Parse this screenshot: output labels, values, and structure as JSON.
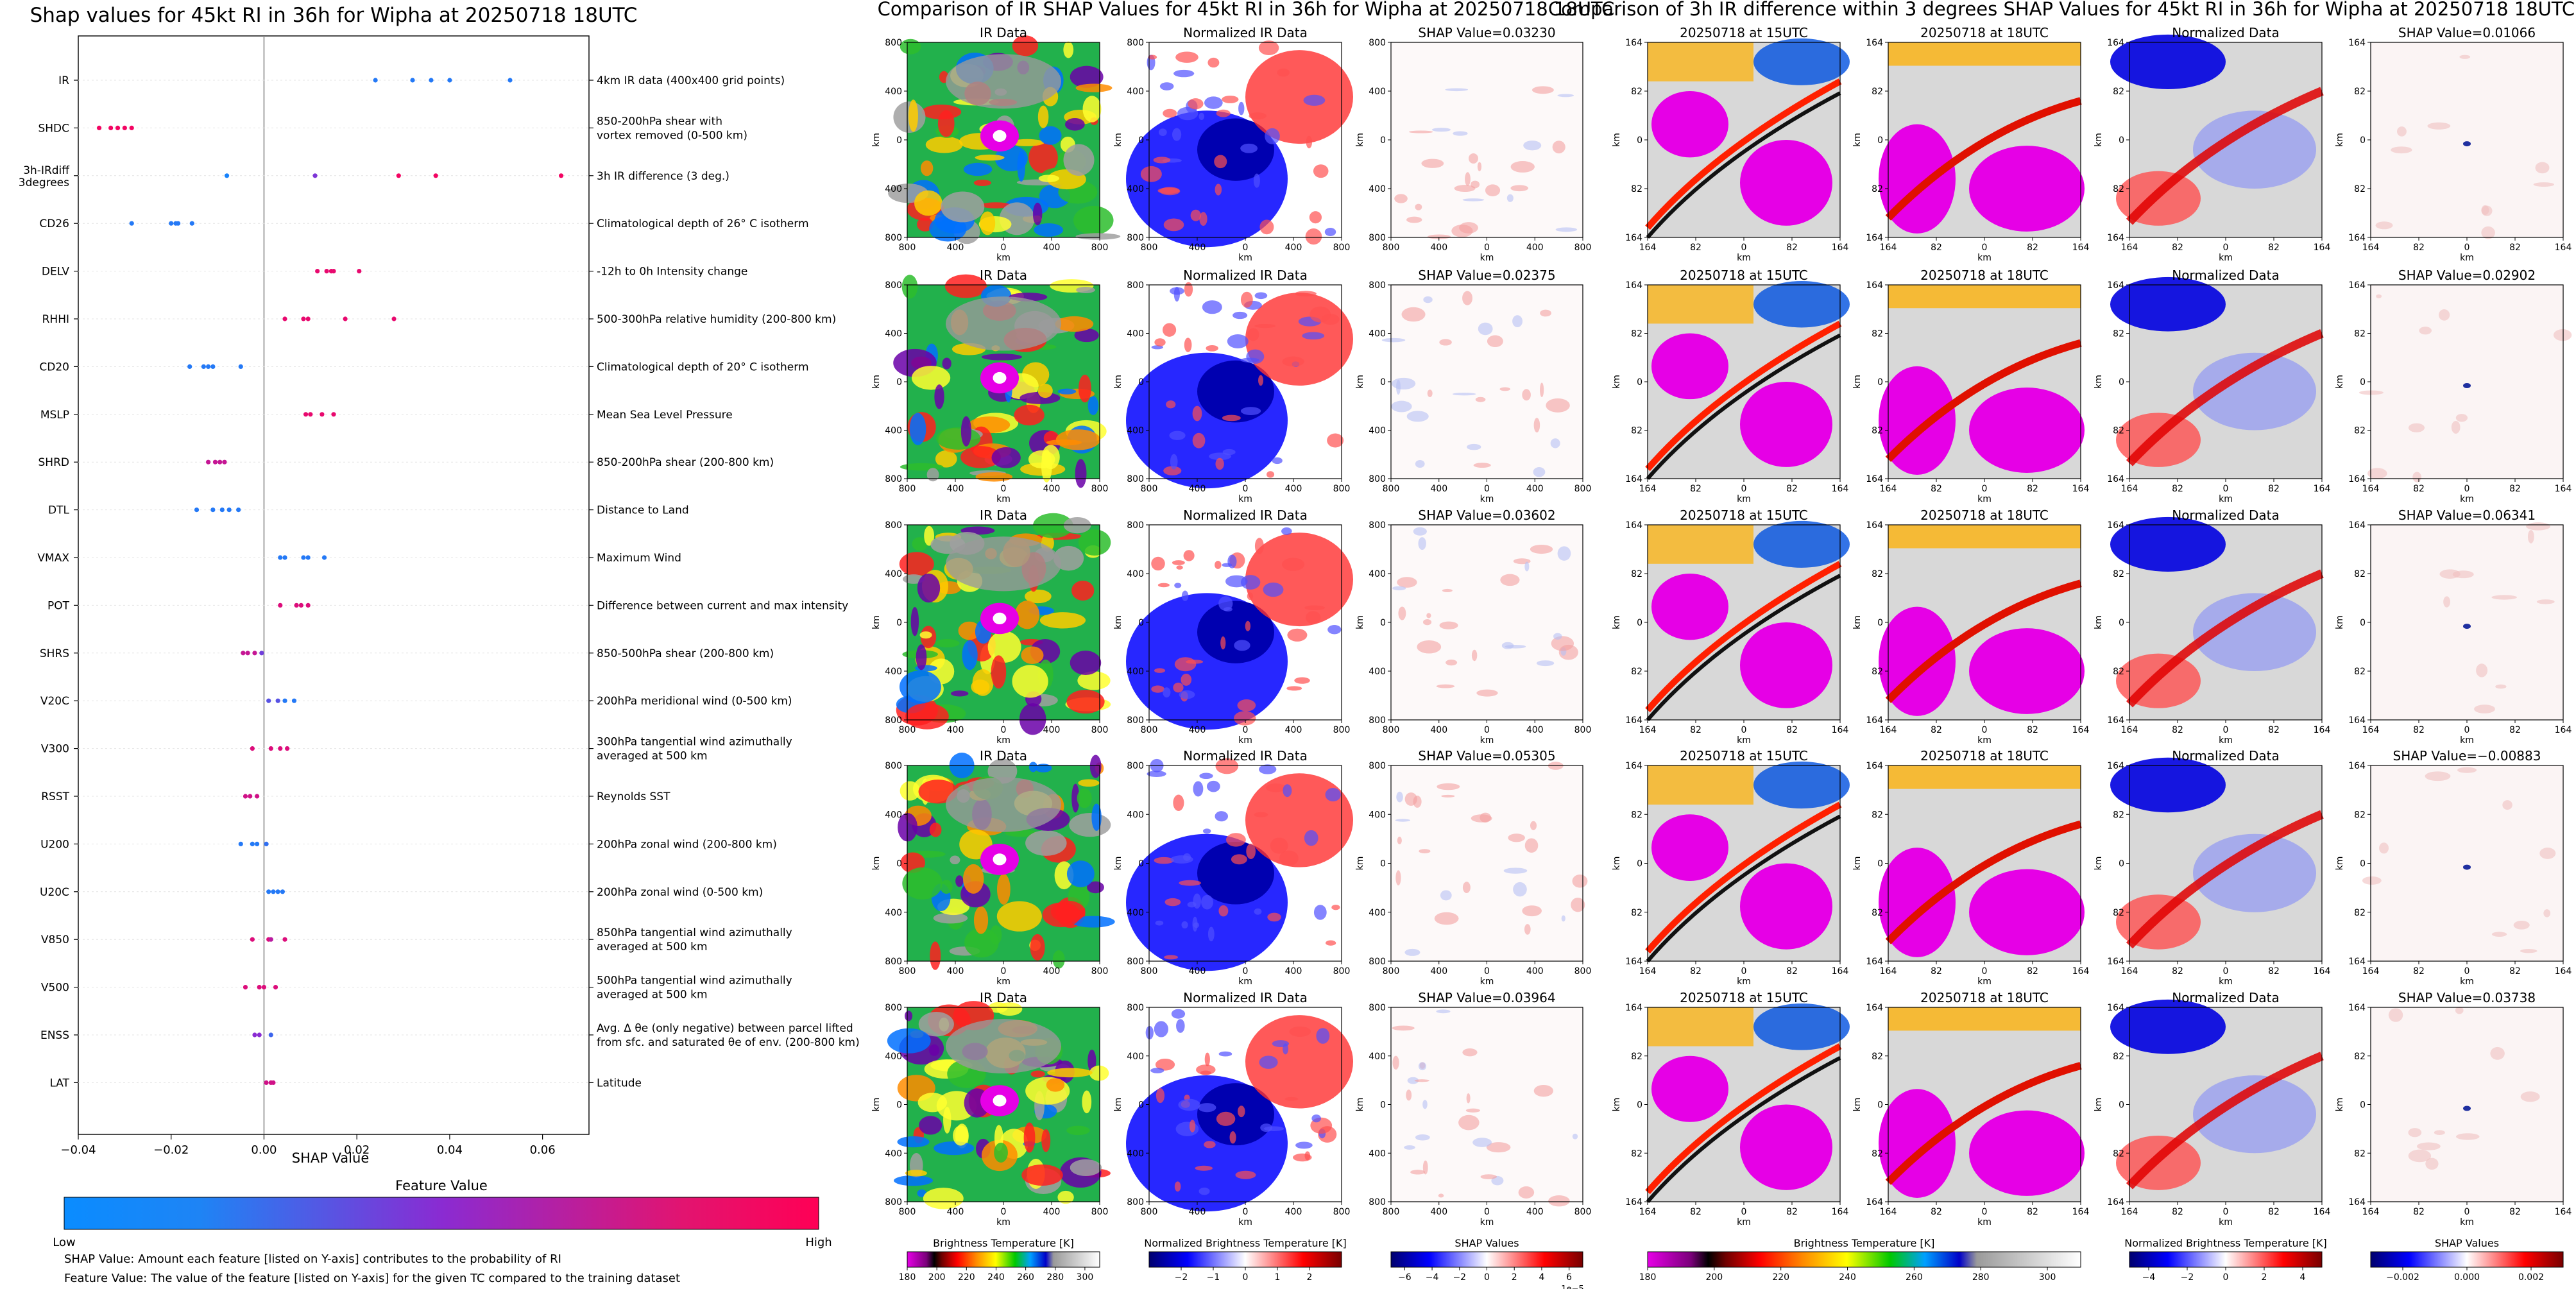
{
  "chart_data": [
    {
      "type": "scatter",
      "title": "Shap values for 45kt RI in 36h for Wipha at 20250718 18UTC",
      "xlabel": "SHAP Value",
      "xlim": [
        -0.04,
        0.07
      ],
      "xticks": [
        "−0.04",
        "−0.02",
        "0.00",
        "0.02",
        "0.04",
        "0.06"
      ],
      "xtick_values": [
        -0.04,
        -0.02,
        0.0,
        0.02,
        0.04,
        0.06
      ],
      "grid": false,
      "features": [
        {
          "name": "IR",
          "desc": [
            "4km IR data (400x400 grid points)"
          ],
          "points": [
            [
              0.024,
              0.1
            ],
            [
              0.032,
              0.1
            ],
            [
              0.036,
              0.1
            ],
            [
              0.04,
              0.1
            ],
            [
              0.053,
              0.1
            ]
          ]
        },
        {
          "name": "SHDC",
          "desc": [
            "850-200hPa shear with",
            "vortex removed (0-500 km)"
          ],
          "points": [
            [
              -0.0355,
              0.95
            ],
            [
              -0.033,
              0.95
            ],
            [
              -0.0315,
              0.95
            ],
            [
              -0.03,
              0.95
            ],
            [
              -0.0285,
              0.95
            ]
          ]
        },
        {
          "name": "3h-IRdiff 3degrees",
          "desc": [
            "3h IR difference (3 deg.)"
          ],
          "points": [
            [
              -0.008,
              0.05
            ],
            [
              0.011,
              0.45
            ],
            [
              0.029,
              0.95
            ],
            [
              0.037,
              0.95
            ],
            [
              0.064,
              0.95
            ]
          ]
        },
        {
          "name": "CD26",
          "desc": [
            "Climatological depth of 26° C isotherm"
          ],
          "points": [
            [
              -0.0285,
              0.1
            ],
            [
              -0.02,
              0.1
            ],
            [
              -0.019,
              0.1
            ],
            [
              -0.0185,
              0.1
            ],
            [
              -0.0155,
              0.1
            ]
          ]
        },
        {
          "name": "DELV",
          "desc": [
            "-12h to 0h Intensity change"
          ],
          "points": [
            [
              0.0115,
              0.9
            ],
            [
              0.0135,
              0.9
            ],
            [
              0.0145,
              0.9
            ],
            [
              0.015,
              0.9
            ],
            [
              0.0205,
              0.9
            ]
          ]
        },
        {
          "name": "RHHI",
          "desc": [
            "500-300hPa relative humidity (200-800 km)"
          ],
          "points": [
            [
              0.0045,
              0.9
            ],
            [
              0.0085,
              0.9
            ],
            [
              0.0095,
              0.9
            ],
            [
              0.0175,
              0.9
            ],
            [
              0.028,
              0.9
            ]
          ]
        },
        {
          "name": "CD20",
          "desc": [
            "Climatological depth of 20° C isotherm"
          ],
          "points": [
            [
              -0.016,
              0.1
            ],
            [
              -0.013,
              0.1
            ],
            [
              -0.012,
              0.1
            ],
            [
              -0.011,
              0.1
            ],
            [
              -0.005,
              0.1
            ]
          ]
        },
        {
          "name": "MSLP",
          "desc": [
            "Mean Sea Level Pressure"
          ],
          "points": [
            [
              0.009,
              0.9
            ],
            [
              0.01,
              0.9
            ],
            [
              0.0125,
              0.9
            ],
            [
              0.015,
              0.9
            ]
          ]
        },
        {
          "name": "SHRD",
          "desc": [
            "850-200hPa shear (200-800 km)"
          ],
          "points": [
            [
              -0.012,
              0.75
            ],
            [
              -0.0105,
              0.75
            ],
            [
              -0.0095,
              0.75
            ],
            [
              -0.0085,
              0.75
            ]
          ]
        },
        {
          "name": "DTL",
          "desc": [
            "Distance to Land"
          ],
          "points": [
            [
              -0.0145,
              0.1
            ],
            [
              -0.011,
              0.1
            ],
            [
              -0.009,
              0.1
            ],
            [
              -0.0075,
              0.1
            ],
            [
              -0.0055,
              0.1
            ]
          ]
        },
        {
          "name": "VMAX",
          "desc": [
            "Maximum Wind"
          ],
          "points": [
            [
              0.0035,
              0.1
            ],
            [
              0.0045,
              0.1
            ],
            [
              0.0085,
              0.1
            ],
            [
              0.0095,
              0.1
            ],
            [
              0.013,
              0.1
            ]
          ]
        },
        {
          "name": "POT",
          "desc": [
            "Difference between current and max intensity"
          ],
          "points": [
            [
              0.0035,
              0.85
            ],
            [
              0.007,
              0.85
            ],
            [
              0.008,
              0.85
            ],
            [
              0.0095,
              0.85
            ]
          ]
        },
        {
          "name": "SHRS",
          "desc": [
            "850-500hPa shear (200-800 km)"
          ],
          "points": [
            [
              -0.0045,
              0.75
            ],
            [
              -0.0035,
              0.75
            ],
            [
              -0.002,
              0.75
            ],
            [
              -0.0005,
              0.4
            ]
          ]
        },
        {
          "name": "V20C",
          "desc": [
            "200hPa meridional wind (0-500 km)"
          ],
          "points": [
            [
              0.001,
              0.3
            ],
            [
              0.003,
              0.3
            ],
            [
              0.0045,
              0.1
            ],
            [
              0.0065,
              0.1
            ]
          ]
        },
        {
          "name": "V300",
          "desc": [
            "300hPa tangential wind azimuthally",
            "averaged at 500 km"
          ],
          "points": [
            [
              -0.0025,
              0.85
            ],
            [
              0.0015,
              0.85
            ],
            [
              0.0035,
              0.85
            ],
            [
              0.005,
              0.85
            ]
          ]
        },
        {
          "name": "RSST",
          "desc": [
            "Reynolds SST"
          ],
          "points": [
            [
              -0.004,
              0.8
            ],
            [
              -0.003,
              0.8
            ],
            [
              -0.0015,
              0.8
            ]
          ]
        },
        {
          "name": "U200",
          "desc": [
            "200hPa zonal wind (200-800 km)"
          ],
          "points": [
            [
              -0.005,
              0.1
            ],
            [
              -0.0025,
              0.1
            ],
            [
              -0.0015,
              0.1
            ],
            [
              0.0005,
              0.15
            ]
          ]
        },
        {
          "name": "U20C",
          "desc": [
            "200hPa zonal wind (0-500 km)"
          ],
          "points": [
            [
              0.001,
              0.1
            ],
            [
              0.002,
              0.1
            ],
            [
              0.003,
              0.1
            ],
            [
              0.004,
              0.1
            ]
          ]
        },
        {
          "name": "V850",
          "desc": [
            "850hPa tangential wind azimuthally",
            "averaged at 500 km"
          ],
          "points": [
            [
              -0.0025,
              0.85
            ],
            [
              0.001,
              0.85
            ],
            [
              0.0015,
              0.7
            ],
            [
              0.0045,
              0.85
            ]
          ]
        },
        {
          "name": "V500",
          "desc": [
            "500hPa tangential wind azimuthally",
            "averaged at 500 km"
          ],
          "points": [
            [
              -0.004,
              0.85
            ],
            [
              -0.001,
              0.85
            ],
            [
              0.0,
              0.85
            ],
            [
              0.0025,
              0.85
            ]
          ]
        },
        {
          "name": "ENSS",
          "desc": [
            "Avg. Δ θe (only negative) between parcel lifted",
            "from sfc. and saturated θe of env. (200-800 km)"
          ],
          "points": [
            [
              -0.002,
              0.5
            ],
            [
              -0.001,
              0.5
            ],
            [
              0.0015,
              0.2
            ]
          ]
        },
        {
          "name": "LAT",
          "desc": [
            "Latitude"
          ],
          "points": [
            [
              0.0005,
              0.8
            ],
            [
              0.0015,
              0.8
            ],
            [
              0.002,
              0.8
            ]
          ]
        }
      ],
      "colorbar": {
        "label": "Feature Value",
        "low": "Low",
        "high": "High",
        "low_color": "#0a8cff",
        "mid_color": "#8a2bd2",
        "high_color": "#ff0055"
      },
      "notes": [
        "SHAP Value: Amount each feature [listed on Y-axis] contributes to the probability of RI",
        "Feature Value: The value of the feature [listed on Y-axis] for the given TC compared to the training dataset"
      ]
    },
    {
      "type": "heatmap",
      "title": "Comparison of IR SHAP Values for 45kt RI in 36h for Wipha at 20250718 18UTC",
      "xlabel": "km",
      "ylabel": "km",
      "xticks": [
        "800",
        "400",
        "0",
        "400",
        "800"
      ],
      "yticks": [
        "800",
        "400",
        "0",
        "400",
        "800"
      ],
      "panel_titles": [
        "IR Data",
        "Normalized IR Data"
      ],
      "shap_titles": [
        "SHAP Value=0.03230",
        "SHAP Value=0.02375",
        "SHAP Value=0.03602",
        "SHAP Value=0.05305",
        "SHAP Value=0.03964"
      ],
      "colorbars": [
        {
          "label": "Brightness Temperature [K]",
          "ticks": [
            "180",
            "200",
            "220",
            "240",
            "260",
            "280",
            "300"
          ],
          "vmin": 180,
          "vmax": 310
        },
        {
          "label": "Normalized Brightness Temperature [K]",
          "ticks": [
            "−2",
            "−1",
            "0",
            "1",
            "2"
          ],
          "vmin": -3,
          "vmax": 3
        },
        {
          "label": "SHAP Values",
          "ticks": [
            "−6",
            "−4",
            "−2",
            "0",
            "2",
            "4",
            "6"
          ],
          "vmin": -7,
          "vmax": 7,
          "offset": "1e−5"
        }
      ]
    },
    {
      "type": "heatmap",
      "title": "Comparison of 3h IR difference within 3 degrees SHAP Values for 45kt RI in 36h for Wipha at 20250718 18UTC",
      "xlabel": "km",
      "ylabel": "km",
      "xticks": [
        "164",
        "82",
        "0",
        "82",
        "164"
      ],
      "yticks": [
        "164",
        "82",
        "0",
        "82",
        "164"
      ],
      "panel_titles": [
        "20250718 at 15UTC",
        "20250718 at 18UTC",
        "Normalized Data"
      ],
      "shap_titles": [
        "SHAP Value=0.01066",
        "SHAP Value=0.02902",
        "SHAP Value=0.06341",
        "SHAP Value=−0.00883",
        "SHAP Value=0.03738"
      ],
      "colorbars": [
        {
          "label": "Brightness Temperature [K]",
          "ticks": [
            "180",
            "200",
            "220",
            "240",
            "260",
            "280",
            "300"
          ],
          "vmin": 180,
          "vmax": 310
        },
        {
          "label": "Normalized Brightness Temperature [K]",
          "ticks": [
            "−4",
            "−2",
            "0",
            "2",
            "4"
          ],
          "vmin": -5,
          "vmax": 5
        },
        {
          "label": "SHAP Values",
          "ticks": [
            "−0.002",
            "0.000",
            "0.002"
          ],
          "vmin": -0.003,
          "vmax": 0.003
        }
      ]
    }
  ]
}
